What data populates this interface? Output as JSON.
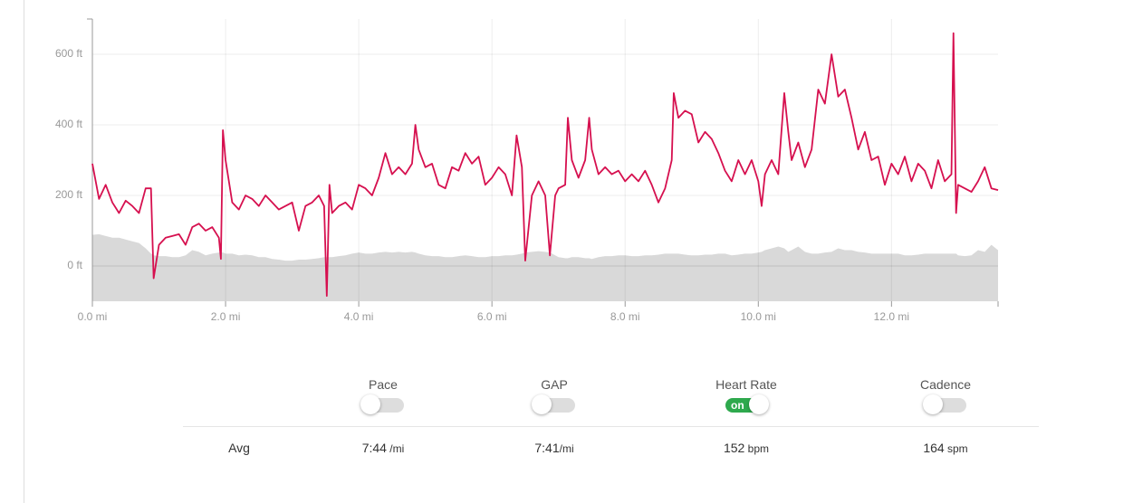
{
  "chart_data": {
    "type": "line",
    "x": [
      0,
      0.1,
      0.2,
      0.3,
      0.4,
      0.5,
      0.6,
      0.7,
      0.8,
      0.88,
      0.92,
      1.0,
      1.1,
      1.2,
      1.3,
      1.4,
      1.5,
      1.6,
      1.7,
      1.8,
      1.9,
      1.93,
      1.96,
      2.0,
      2.1,
      2.2,
      2.3,
      2.4,
      2.5,
      2.6,
      2.7,
      2.8,
      2.9,
      3.0,
      3.1,
      3.2,
      3.3,
      3.4,
      3.48,
      3.52,
      3.56,
      3.6,
      3.7,
      3.8,
      3.9,
      4.0,
      4.1,
      4.2,
      4.3,
      4.4,
      4.5,
      4.6,
      4.7,
      4.8,
      4.85,
      4.9,
      5.0,
      5.1,
      5.2,
      5.3,
      5.4,
      5.5,
      5.6,
      5.7,
      5.8,
      5.9,
      6.0,
      6.1,
      6.2,
      6.3,
      6.37,
      6.45,
      6.5,
      6.6,
      6.7,
      6.8,
      6.87,
      6.95,
      7.0,
      7.1,
      7.14,
      7.2,
      7.3,
      7.4,
      7.46,
      7.5,
      7.6,
      7.7,
      7.8,
      7.9,
      8.0,
      8.1,
      8.2,
      8.3,
      8.4,
      8.5,
      8.6,
      8.7,
      8.73,
      8.8,
      8.9,
      9.0,
      9.1,
      9.2,
      9.3,
      9.4,
      9.5,
      9.6,
      9.7,
      9.8,
      9.9,
      10.0,
      10.05,
      10.1,
      10.2,
      10.3,
      10.39,
      10.45,
      10.5,
      10.6,
      10.7,
      10.8,
      10.9,
      11.0,
      11.1,
      11.2,
      11.3,
      11.4,
      11.5,
      11.6,
      11.7,
      11.8,
      11.9,
      12.0,
      12.1,
      12.2,
      12.3,
      12.4,
      12.5,
      12.6,
      12.7,
      12.8,
      12.9,
      12.93,
      12.97,
      13.0,
      13.1,
      13.2,
      13.3,
      13.4,
      13.5,
      13.6
    ],
    "series": [
      {
        "style": "area",
        "color": "#d9d9d9",
        "values": [
          88,
          90,
          85,
          80,
          80,
          75,
          70,
          65,
          50,
          35,
          30,
          28,
          28,
          25,
          25,
          30,
          45,
          40,
          30,
          35,
          38,
          38,
          38,
          35,
          35,
          30,
          32,
          30,
          25,
          25,
          20,
          18,
          15,
          15,
          18,
          18,
          20,
          22,
          25,
          25,
          25,
          25,
          28,
          30,
          35,
          38,
          35,
          35,
          38,
          40,
          38,
          40,
          38,
          40,
          38,
          35,
          30,
          28,
          28,
          25,
          25,
          28,
          30,
          28,
          25,
          25,
          28,
          28,
          30,
          30,
          32,
          35,
          38,
          40,
          42,
          40,
          38,
          30,
          25,
          22,
          22,
          25,
          25,
          22,
          22,
          20,
          25,
          28,
          28,
          30,
          30,
          28,
          28,
          30,
          30,
          32,
          35,
          35,
          35,
          35,
          32,
          30,
          30,
          32,
          32,
          35,
          35,
          30,
          32,
          35,
          35,
          38,
          40,
          45,
          50,
          55,
          50,
          40,
          45,
          55,
          40,
          35,
          35,
          38,
          40,
          50,
          45,
          45,
          40,
          38,
          35,
          35,
          35,
          35,
          35,
          30,
          30,
          32,
          35,
          35,
          35,
          35,
          35,
          35,
          35,
          30,
          28,
          30,
          45,
          40,
          60,
          45
        ]
      },
      {
        "style": "line",
        "color": "#d6104f",
        "values": [
          290,
          190,
          230,
          180,
          150,
          185,
          170,
          150,
          220,
          220,
          -35,
          60,
          80,
          85,
          90,
          60,
          110,
          120,
          100,
          110,
          80,
          20,
          385,
          300,
          180,
          160,
          200,
          190,
          170,
          200,
          180,
          160,
          170,
          180,
          100,
          170,
          180,
          200,
          170,
          -85,
          230,
          150,
          170,
          180,
          160,
          230,
          220,
          200,
          250,
          320,
          260,
          280,
          260,
          290,
          400,
          330,
          280,
          290,
          230,
          220,
          280,
          270,
          320,
          290,
          310,
          230,
          250,
          280,
          260,
          200,
          370,
          280,
          15,
          200,
          240,
          200,
          30,
          200,
          220,
          230,
          420,
          300,
          250,
          300,
          420,
          330,
          260,
          280,
          260,
          270,
          240,
          260,
          240,
          270,
          230,
          180,
          220,
          300,
          490,
          420,
          440,
          430,
          350,
          380,
          360,
          320,
          270,
          240,
          300,
          260,
          300,
          240,
          170,
          260,
          300,
          260,
          490,
          380,
          300,
          350,
          280,
          330,
          500,
          460,
          600,
          480,
          500,
          420,
          330,
          380,
          300,
          310,
          230,
          290,
          260,
          310,
          240,
          290,
          270,
          220,
          300,
          240,
          260,
          660,
          150,
          230,
          220,
          210,
          240,
          280,
          220,
          215
        ]
      }
    ],
    "xlim": [
      0,
      13.6
    ],
    "ylim": [
      -100,
      700
    ],
    "xticks": [
      {
        "value": 0,
        "label": "0.0 mi"
      },
      {
        "value": 2,
        "label": "2.0 mi"
      },
      {
        "value": 4,
        "label": "4.0 mi"
      },
      {
        "value": 6,
        "label": "6.0 mi"
      },
      {
        "value": 8,
        "label": "8.0 mi"
      },
      {
        "value": 10,
        "label": "10.0 mi"
      },
      {
        "value": 12,
        "label": "12.0 mi"
      }
    ],
    "yticks": [
      {
        "value": 0,
        "label": "0 ft"
      },
      {
        "value": 200,
        "label": "200 ft"
      },
      {
        "value": 400,
        "label": "400 ft"
      },
      {
        "value": 600,
        "label": "600 ft"
      }
    ],
    "grid": true
  },
  "toggles": [
    {
      "label": "Pace",
      "on": false
    },
    {
      "label": "GAP",
      "on": false
    },
    {
      "label": "Heart Rate",
      "on": true,
      "state_label": "on"
    },
    {
      "label": "Cadence",
      "on": false
    }
  ],
  "averages": {
    "label": "Avg",
    "items": [
      {
        "value": "7:44",
        "unit": " /mi"
      },
      {
        "value": "7:41",
        "unit": "/mi"
      },
      {
        "value": "152",
        "unit": " bpm"
      },
      {
        "value": "164",
        "unit": " spm"
      }
    ]
  }
}
